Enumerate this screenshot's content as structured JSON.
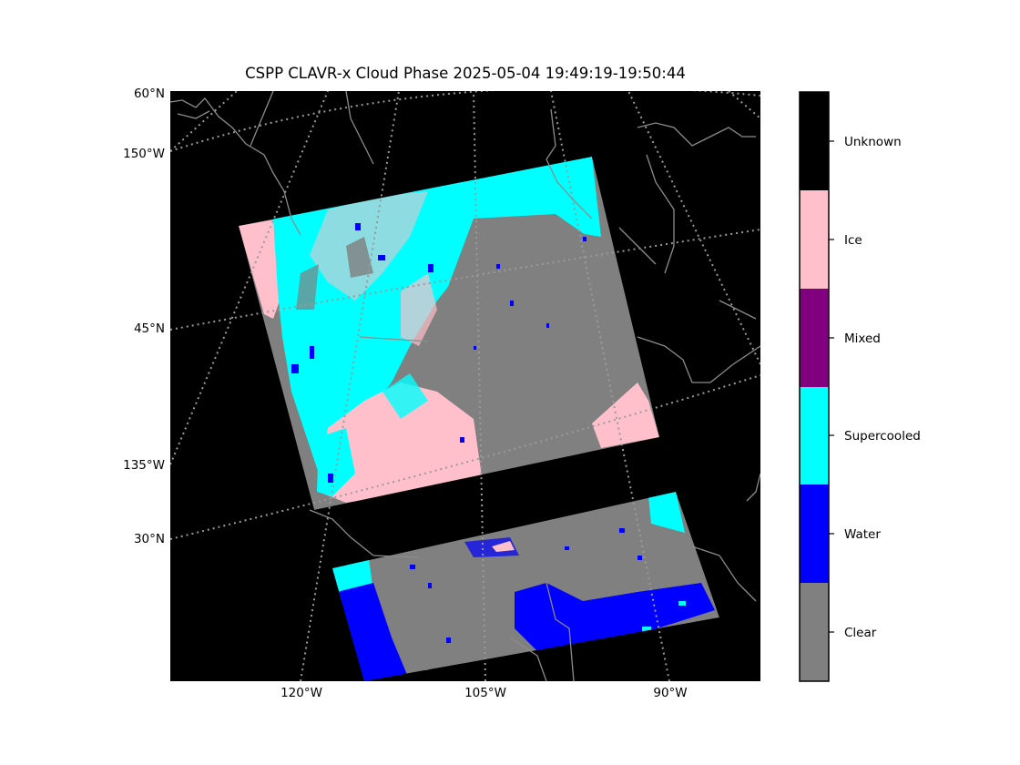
{
  "title": "CSPP CLAVR-x Cloud Phase 2025-05-04 19:49:19-19:50:44",
  "map": {
    "lat_labels": [
      "60°N",
      "45°N",
      "30°N"
    ],
    "lon_labels_left": [
      "150°W",
      "135°W"
    ],
    "lon_labels_bottom": [
      "120°W",
      "105°W",
      "90°W"
    ]
  },
  "colorbar": {
    "classes": [
      {
        "label": "Unknown",
        "color": "#000000"
      },
      {
        "label": "Ice",
        "color": "#ffc0cb"
      },
      {
        "label": "Mixed",
        "color": "#800080"
      },
      {
        "label": "Supercooled",
        "color": "#00ffff"
      },
      {
        "label": "Water",
        "color": "#0000ff"
      },
      {
        "label": "Clear",
        "color": "#808080"
      }
    ]
  },
  "colors": {
    "background": "#000000",
    "coastline": "#8c8c8c",
    "gridline": "#9a9a9a",
    "clear": "#808080",
    "water": "#0000ff",
    "supercooled": "#00ffff",
    "ice": "#ffc0cb"
  }
}
